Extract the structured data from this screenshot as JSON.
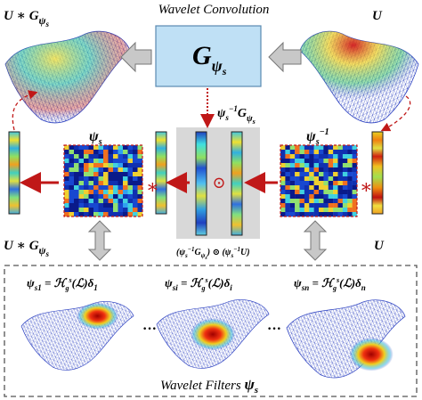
{
  "title": "Wavelet Convolution",
  "output_top": [
    "U ∗ G",
    "ψ",
    "s"
  ],
  "input_top": [
    "U"
  ],
  "kernel_box": [
    "G",
    "ψ",
    "s"
  ],
  "transformed_kernel": [
    "ψ",
    "s",
    "−1",
    "G",
    "ψ",
    "s"
  ],
  "wavelet_label": [
    "ψ",
    "s"
  ],
  "inverse_label": [
    "ψ",
    "s",
    "−1"
  ],
  "output_bottom": [
    "U ∗ G",
    "ψ",
    "s"
  ],
  "input_bottom": [
    "U"
  ],
  "product_formula": [
    "(ψ",
    "s",
    "−1",
    "G",
    "ψ",
    "s",
    ") ⊙ (ψ",
    "s",
    "−1",
    "U)"
  ],
  "operators": [
    "∗",
    "∗",
    "⊙"
  ],
  "filters": [
    [
      "ψ",
      "s1",
      " = ℋ",
      "g",
      "s",
      "(ℒ)δ",
      "1"
    ],
    [
      "ψ",
      "si",
      " = ℋ",
      "g",
      "s",
      "(ℒ)δ",
      "i"
    ],
    [
      "ψ",
      "sn",
      " = ℋ",
      "g",
      "s",
      "(ℒ)δ",
      "n"
    ]
  ],
  "ellipses": [
    "···",
    "···"
  ],
  "footer": [
    "Wavelet Filters ",
    "ψ",
    "s"
  ]
}
